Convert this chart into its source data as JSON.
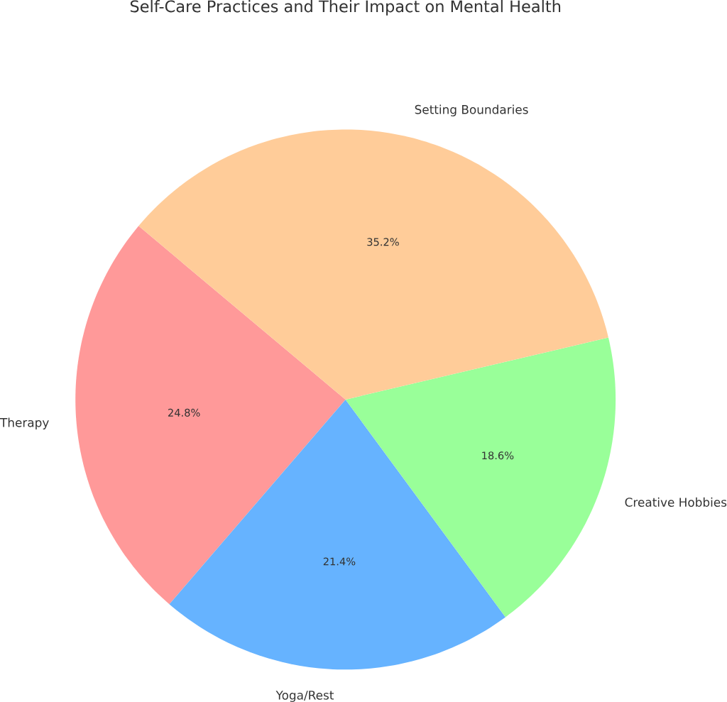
{
  "chart_data": {
    "type": "pie",
    "title": "Self-Care Practices and Their Impact on Mental Health",
    "categories": [
      "Therapy",
      "Yoga/Rest",
      "Creative Hobbies",
      "Setting Boundaries"
    ],
    "values": [
      24.8,
      21.4,
      18.6,
      35.2
    ],
    "colors": [
      "#ff9999",
      "#66b3ff",
      "#99ff99",
      "#ffcc99"
    ],
    "value_labels": [
      "24.8%",
      "21.4%",
      "18.6%",
      "35.2%"
    ]
  }
}
